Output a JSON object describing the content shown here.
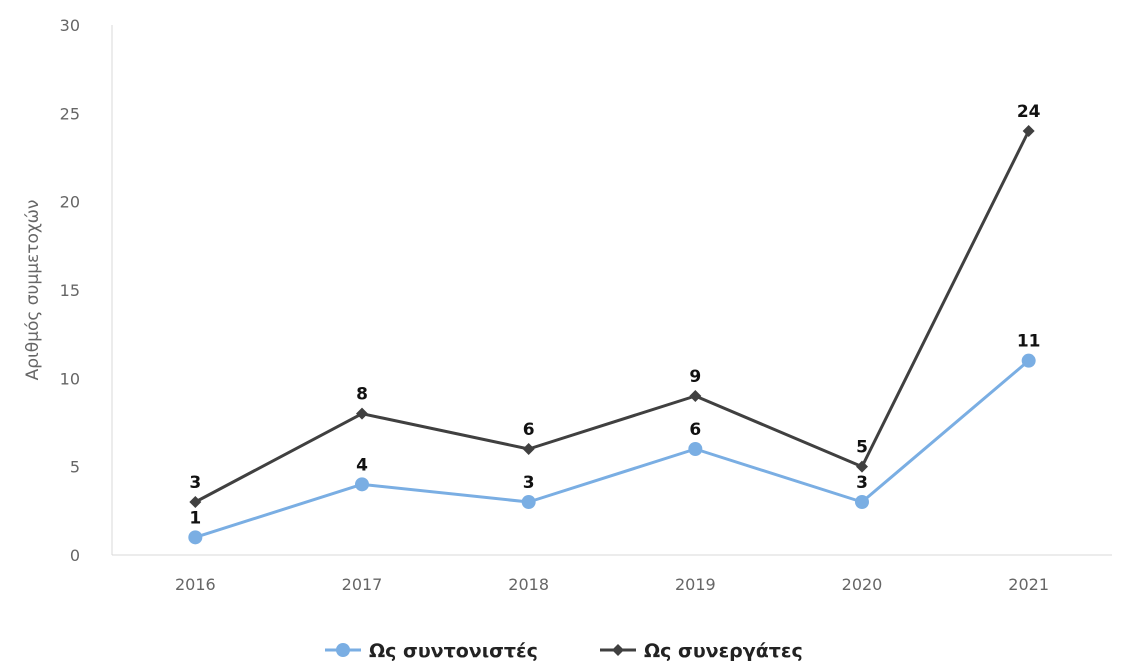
{
  "chart_data": {
    "type": "line",
    "title": "",
    "xlabel": "",
    "ylabel": "Αριθμός συμμετοχών",
    "categories": [
      "2016",
      "2017",
      "2018",
      "2019",
      "2020",
      "2021"
    ],
    "ylim": [
      0,
      30
    ],
    "yticks": [
      0,
      5,
      10,
      15,
      20,
      25,
      30
    ],
    "grid": false,
    "legend": "bottom",
    "series": [
      {
        "name": "Ως συντονιστές",
        "values": [
          1,
          4,
          3,
          6,
          3,
          11
        ],
        "color": "#7aaee3",
        "marker": "circle"
      },
      {
        "name": "Ως συνεργάτες",
        "values": [
          3,
          8,
          6,
          9,
          5,
          24
        ],
        "color": "#404040",
        "marker": "diamond"
      }
    ]
  }
}
